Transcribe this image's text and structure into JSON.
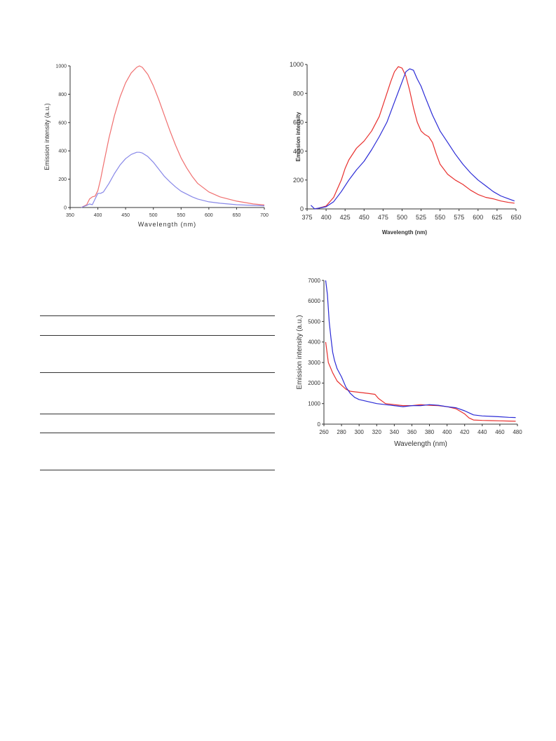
{
  "colors": {
    "red": "#e8302e",
    "blue": "#2b2bd6",
    "light_red": "#f07070",
    "light_blue": "#8888e8"
  },
  "chart_data": [
    {
      "type": "line",
      "title": "",
      "xlabel": "Wavelength (nm)",
      "ylabel": "Emission intensity (a.u.)",
      "xlim": [
        350,
        700
      ],
      "ylim": [
        0,
        1000
      ],
      "xticks": [
        350,
        400,
        450,
        500,
        550,
        600,
        650,
        700
      ],
      "yticks": [
        0,
        200,
        400,
        600,
        800,
        1000
      ],
      "grid": false,
      "series": [
        {
          "color": "#f07070",
          "x": [
            370,
            380,
            385,
            390,
            395,
            400,
            405,
            410,
            420,
            430,
            440,
            450,
            460,
            470,
            475,
            480,
            490,
            500,
            510,
            520,
            530,
            540,
            550,
            560,
            570,
            580,
            600,
            620,
            650,
            680,
            700
          ],
          "y": [
            0,
            20,
            60,
            75,
            80,
            120,
            200,
            300,
            490,
            650,
            780,
            880,
            950,
            990,
            1000,
            990,
            940,
            860,
            760,
            650,
            540,
            440,
            350,
            280,
            220,
            170,
            110,
            75,
            45,
            25,
            18
          ]
        },
        {
          "color": "#8888e8",
          "x": [
            370,
            380,
            385,
            390,
            395,
            400,
            405,
            410,
            420,
            430,
            440,
            450,
            460,
            470,
            475,
            480,
            490,
            500,
            510,
            520,
            530,
            540,
            550,
            560,
            570,
            580,
            600,
            620,
            650,
            680,
            700
          ],
          "y": [
            0,
            15,
            25,
            20,
            60,
            100,
            100,
            110,
            170,
            240,
            300,
            345,
            375,
            390,
            390,
            385,
            360,
            320,
            270,
            220,
            180,
            145,
            115,
            95,
            75,
            60,
            40,
            30,
            20,
            15,
            12
          ]
        }
      ]
    },
    {
      "type": "line",
      "title": "",
      "xlabel": "Wavelength (nm)",
      "ylabel": "Emission intensity",
      "xlim": [
        375,
        650
      ],
      "ylim": [
        0,
        1000
      ],
      "xticks": [
        375,
        400,
        425,
        450,
        475,
        500,
        525,
        550,
        575,
        600,
        625,
        650
      ],
      "yticks": [
        0,
        200,
        400,
        600,
        800,
        1000
      ],
      "grid": false,
      "series": [
        {
          "color": "#e8302e",
          "x": [
            385,
            390,
            400,
            410,
            420,
            425,
            430,
            440,
            450,
            460,
            470,
            480,
            485,
            490,
            495,
            500,
            505,
            510,
            515,
            520,
            525,
            530,
            535,
            540,
            545,
            550,
            560,
            570,
            580,
            590,
            600,
            610,
            620,
            630,
            640,
            648
          ],
          "y": [
            0,
            5,
            20,
            80,
            200,
            280,
            340,
            420,
            470,
            540,
            640,
            800,
            880,
            950,
            985,
            975,
            920,
            820,
            700,
            600,
            540,
            515,
            500,
            460,
            380,
            310,
            240,
            200,
            170,
            130,
            100,
            80,
            70,
            55,
            45,
            40
          ]
        },
        {
          "color": "#2b2bd6",
          "x": [
            380,
            385,
            390,
            400,
            410,
            420,
            430,
            440,
            450,
            460,
            470,
            480,
            490,
            500,
            505,
            510,
            515,
            520,
            525,
            530,
            540,
            550,
            560,
            570,
            580,
            590,
            600,
            610,
            620,
            630,
            640,
            648
          ],
          "y": [
            25,
            0,
            5,
            15,
            50,
            120,
            200,
            270,
            330,
            410,
            500,
            600,
            740,
            880,
            950,
            970,
            960,
            900,
            850,
            780,
            650,
            540,
            460,
            380,
            310,
            250,
            200,
            160,
            120,
            90,
            70,
            55
          ]
        }
      ]
    },
    {
      "type": "line",
      "title": "",
      "xlabel": "Wavelength (nm)",
      "ylabel": "Emission intensity (a.u.)",
      "xlim": [
        260,
        480
      ],
      "ylim": [
        0,
        7000
      ],
      "xticks": [
        260,
        280,
        300,
        320,
        340,
        360,
        380,
        400,
        420,
        440,
        460,
        480
      ],
      "yticks": [
        0,
        1000,
        2000,
        3000,
        4000,
        5000,
        6000,
        7000
      ],
      "grid": false,
      "series": [
        {
          "color": "#e8302e",
          "x": [
            262,
            265,
            270,
            275,
            280,
            285,
            290,
            300,
            310,
            318,
            322,
            330,
            340,
            350,
            360,
            370,
            380,
            390,
            400,
            410,
            420,
            425,
            430,
            440,
            450,
            460,
            470,
            478
          ],
          "y": [
            4000,
            3000,
            2500,
            2100,
            1900,
            1700,
            1600,
            1550,
            1500,
            1450,
            1250,
            1000,
            950,
            900,
            900,
            950,
            920,
            900,
            850,
            750,
            500,
            300,
            200,
            180,
            170,
            160,
            150,
            140
          ]
        },
        {
          "color": "#2b2bd6",
          "x": [
            262,
            264,
            266,
            268,
            270,
            272,
            275,
            280,
            285,
            290,
            295,
            300,
            310,
            320,
            330,
            340,
            350,
            360,
            370,
            380,
            390,
            400,
            410,
            420,
            425,
            430,
            440,
            450,
            460,
            470,
            478
          ],
          "y": [
            7000,
            6300,
            5000,
            4200,
            3500,
            3100,
            2700,
            2300,
            1800,
            1500,
            1300,
            1200,
            1100,
            1000,
            950,
            900,
            850,
            900,
            900,
            950,
            920,
            850,
            800,
            650,
            550,
            450,
            400,
            380,
            360,
            330,
            320
          ]
        }
      ]
    }
  ]
}
